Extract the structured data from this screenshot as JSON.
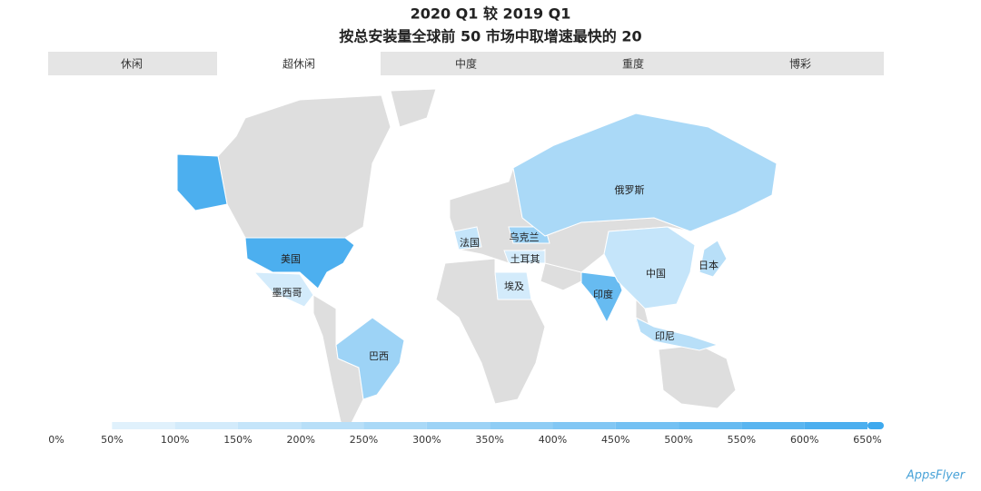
{
  "tabs": {
    "items": [
      "休闲",
      "超休闲",
      "中度",
      "重度",
      "博彩"
    ],
    "active": 1
  },
  "chart_data": {
    "type": "choropleth",
    "title": "2020 Q1 较 2019 Q1",
    "subtitle": "按总安装量全球前 50 市场中取增速最快的 20",
    "categories": [
      "美国",
      "墨西哥",
      "巴西",
      "法国",
      "乌克兰",
      "土耳其",
      "埃及",
      "俄罗斯",
      "印度",
      "中国",
      "日本",
      "印尼"
    ],
    "values": [
      600,
      100,
      300,
      150,
      300,
      100,
      100,
      250,
      500,
      150,
      200,
      200
    ],
    "colorscale": [
      "#eef7fd",
      "#3ea9ee"
    ],
    "lim": [
      0,
      650
    ],
    "ticks": [
      {
        "value": 0,
        "label": "0%"
      },
      {
        "value": 50,
        "label": "50%"
      },
      {
        "value": 100,
        "label": "100%"
      },
      {
        "value": 150,
        "label": "150%"
      },
      {
        "value": 200,
        "label": "200%"
      },
      {
        "value": 250,
        "label": "250%"
      },
      {
        "value": 300,
        "label": "300%"
      },
      {
        "value": 350,
        "label": "350%"
      },
      {
        "value": 400,
        "label": "400%"
      },
      {
        "value": 450,
        "label": "450%"
      },
      {
        "value": 500,
        "label": "500%"
      },
      {
        "value": 550,
        "label": "550%"
      },
      {
        "value": 600,
        "label": "600%"
      },
      {
        "value": 650,
        "label": "650%"
      }
    ]
  },
  "logo": "AppsFlyer"
}
